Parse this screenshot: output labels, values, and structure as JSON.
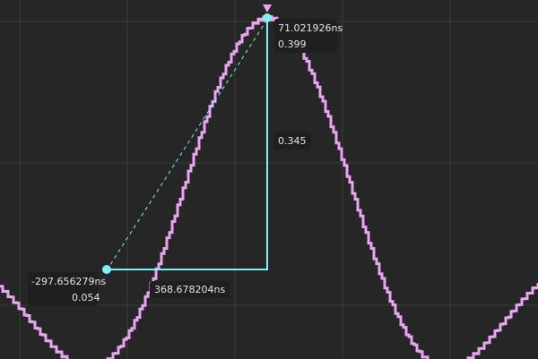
{
  "colors": {
    "background": "#262626",
    "grid": "#3b3b3b",
    "waveform": "#e9a6f0",
    "cursor": "#7ff0f5",
    "label_bg": "#1f1f1f",
    "label_text": "#e4e4e4"
  },
  "icons": {
    "peak_marker": "triangle-down-icon",
    "cursor_point": "filled-circle-icon"
  },
  "cursor_a": {
    "time": "-297.656279ns",
    "value": "0.054"
  },
  "cursor_b": {
    "time": "71.021926ns",
    "value": "0.399"
  },
  "delta": {
    "time": "368.678204ns",
    "value": "0.345"
  }
}
